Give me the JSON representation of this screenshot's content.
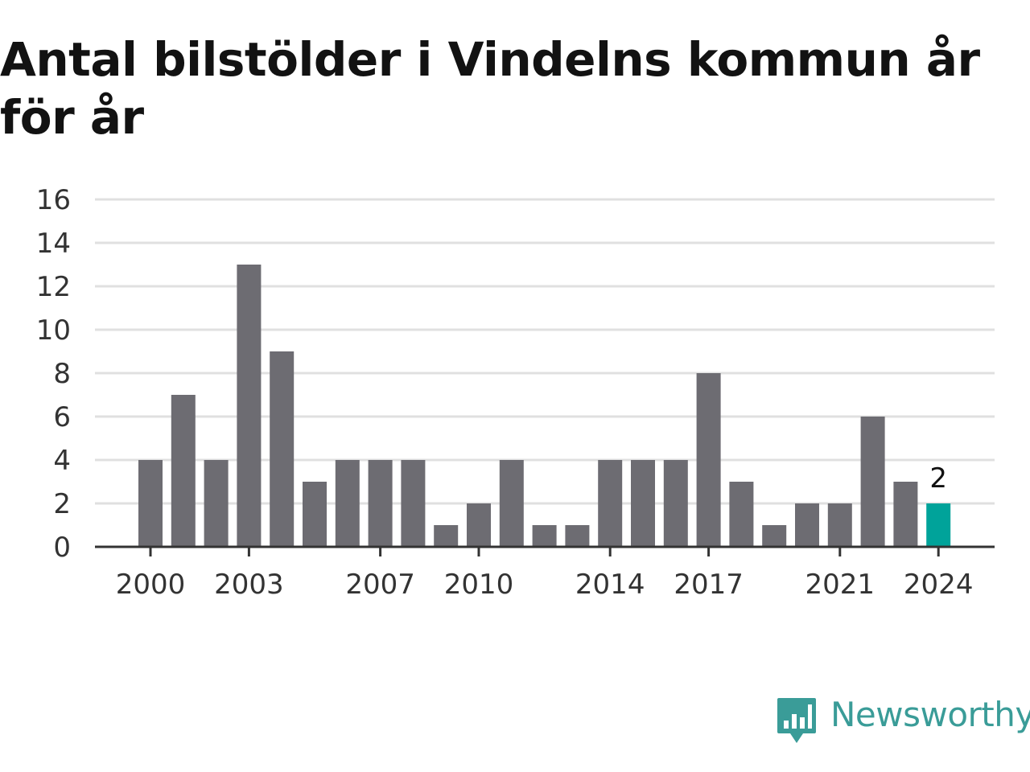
{
  "brand": {
    "name": "Newsworthy",
    "logo_icon": "bar-chart-speech-bubble-icon",
    "color": "#3a9c98"
  },
  "chart_data": {
    "type": "bar",
    "title": "Antal bilstölder i Vindelns kommun år för år",
    "categories": [
      "2000",
      "2001",
      "2002",
      "2003",
      "2004",
      "2005",
      "2006",
      "2007",
      "2008",
      "2009",
      "2010",
      "2011",
      "2012",
      "2013",
      "2014",
      "2015",
      "2016",
      "2017",
      "2018",
      "2019",
      "2020",
      "2021",
      "2022",
      "2023",
      "2024"
    ],
    "values": [
      4,
      7,
      4,
      13,
      9,
      3,
      4,
      4,
      4,
      1,
      2,
      4,
      1,
      1,
      4,
      4,
      4,
      8,
      3,
      1,
      2,
      2,
      6,
      3,
      2
    ],
    "xtick_labels": [
      "2000",
      "2003",
      "2007",
      "2010",
      "2014",
      "2017",
      "2021",
      "2024"
    ],
    "ytick_labels": [
      "0",
      "2",
      "4",
      "6",
      "8",
      "10",
      "12",
      "14",
      "16"
    ],
    "ylim": [
      0,
      16
    ],
    "grid": true,
    "highlight": {
      "category": "2024",
      "label": "2",
      "color": "#00a39a"
    },
    "bar_color": "#6d6c72"
  }
}
